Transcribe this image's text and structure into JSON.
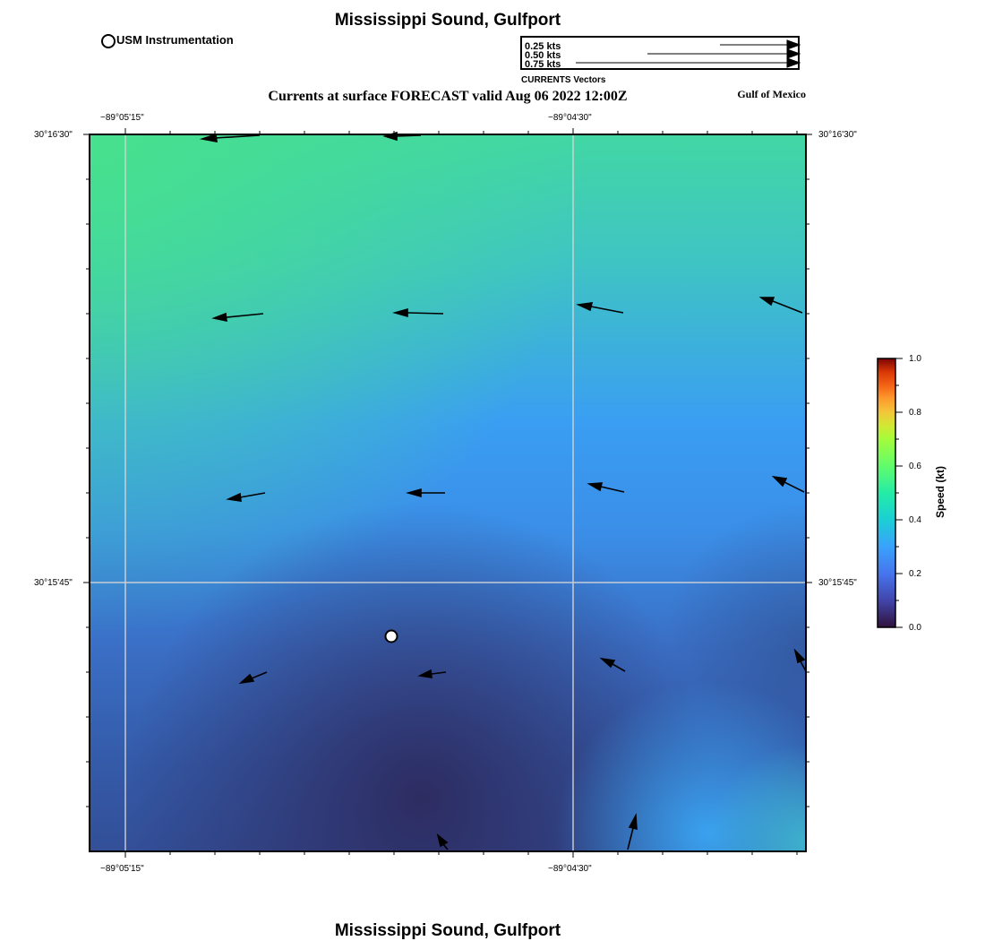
{
  "title_top": "Mississippi Sound, Gulfport",
  "title_bottom": "Mississippi Sound, Gulfport",
  "subtitle": "Currents at surface FORECAST valid Aug 06 2022 12:00Z",
  "region_label": "Gulf of Mexico",
  "instrument_legend": "USM Instrumentation",
  "vector_legend": {
    "caption": "CURRENTS Vectors",
    "entries": [
      "0.25 kts",
      "0.50 kts",
      "0.75 kts"
    ]
  },
  "axes": {
    "x_ticks": [
      "−89°05'15\"",
      "−89°04'30\""
    ],
    "y_ticks": [
      "30°16'30\"",
      "30°15'45\""
    ]
  },
  "colorbar": {
    "label": "Speed (kt)",
    "ticks": [
      "1.0",
      "0.8",
      "0.6",
      "0.4",
      "0.2",
      "0.0"
    ]
  },
  "colors": {
    "speed_low": "#2d2a5e",
    "speed_mid": "#3a9af8",
    "speed_high": "#47e18c"
  }
}
